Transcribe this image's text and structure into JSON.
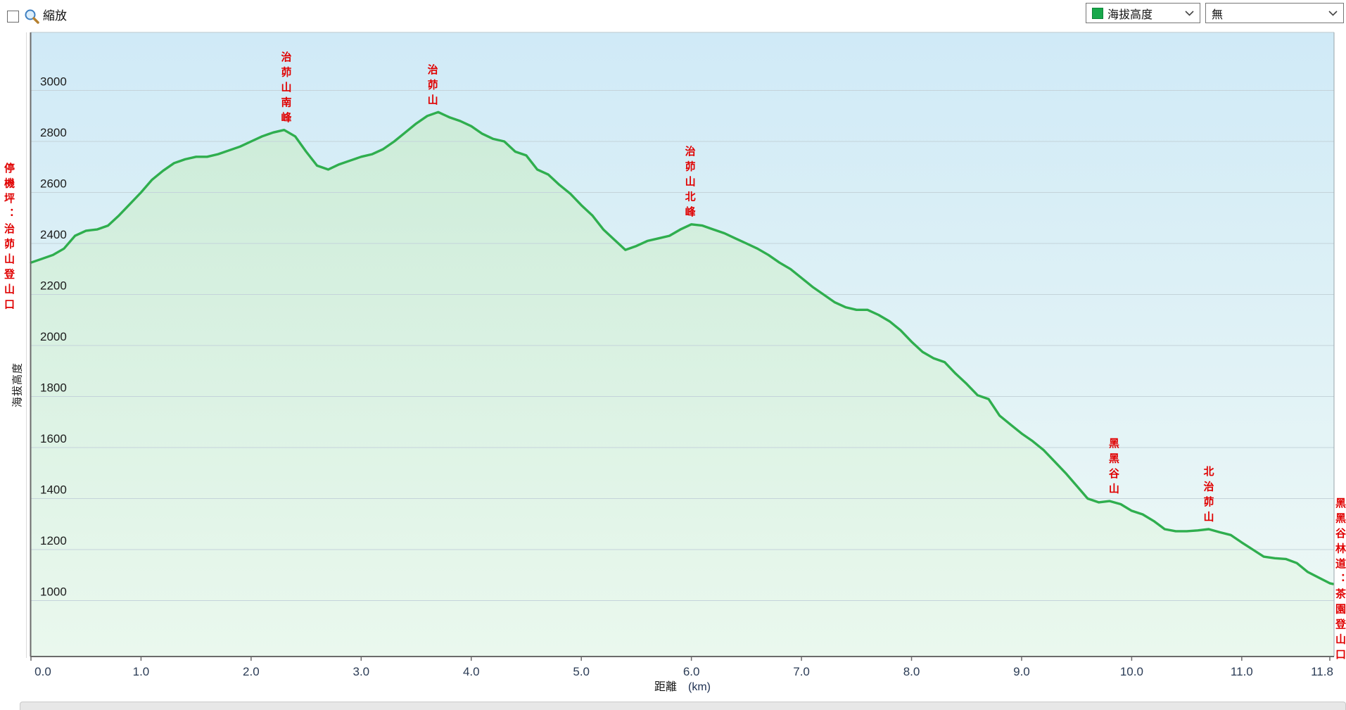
{
  "toolbar": {
    "zoom_label": "縮放",
    "series_select": {
      "value": "海拔高度",
      "swatch_color": "#17a84b"
    },
    "overlay_select": {
      "value": "無"
    }
  },
  "chart_data": {
    "type": "area",
    "title": "",
    "xlabel": "距離",
    "xlabel_unit": "(km)",
    "ylabel": "海拔高度",
    "grid": "horizontal",
    "legend_position": "top-right-dropdown",
    "x_axis": {
      "min": 0,
      "max": 11.83,
      "tick_km": [
        0,
        1,
        2,
        3,
        4,
        5,
        6,
        7,
        8,
        9,
        10,
        11,
        11.8
      ],
      "tick_labels": [
        "0.0",
        "1.0",
        "2.0",
        "3.0",
        "4.0",
        "5.0",
        "6.0",
        "7.0",
        "8.0",
        "9.0",
        "10.0",
        "11.0",
        "11.8"
      ]
    },
    "y_axis": {
      "min": 780,
      "max": 3230,
      "tick_m": [
        1000,
        1200,
        1400,
        1600,
        1800,
        2000,
        2200,
        2400,
        2600,
        2800,
        3000
      ],
      "tick_labels": [
        "1000",
        "1200",
        "1400",
        "1600",
        "1800",
        "2000",
        "2200",
        "2400",
        "2600",
        "2800",
        "3000"
      ]
    },
    "line_color": "#2fae4e",
    "area_top_color": "#cdecd9",
    "area_bottom_color": "#eaf8ee",
    "bg_top_color": "#d0eaf7",
    "bg_bottom_color": "#eff9f5",
    "points_km_m": [
      [
        0,
        2325
      ],
      [
        0.1,
        2340
      ],
      [
        0.2,
        2355
      ],
      [
        0.3,
        2380
      ],
      [
        0.4,
        2430
      ],
      [
        0.5,
        2450
      ],
      [
        0.6,
        2455
      ],
      [
        0.7,
        2470
      ],
      [
        0.8,
        2510
      ],
      [
        0.9,
        2555
      ],
      [
        1,
        2600
      ],
      [
        1.1,
        2650
      ],
      [
        1.2,
        2685
      ],
      [
        1.3,
        2715
      ],
      [
        1.4,
        2730
      ],
      [
        1.5,
        2740
      ],
      [
        1.6,
        2740
      ],
      [
        1.7,
        2750
      ],
      [
        1.8,
        2765
      ],
      [
        1.9,
        2780
      ],
      [
        2,
        2800
      ],
      [
        2.1,
        2820
      ],
      [
        2.2,
        2835
      ],
      [
        2.3,
        2845
      ],
      [
        2.4,
        2820
      ],
      [
        2.5,
        2760
      ],
      [
        2.6,
        2705
      ],
      [
        2.7,
        2690
      ],
      [
        2.8,
        2710
      ],
      [
        2.9,
        2725
      ],
      [
        3,
        2740
      ],
      [
        3.1,
        2750
      ],
      [
        3.2,
        2770
      ],
      [
        3.3,
        2800
      ],
      [
        3.4,
        2835
      ],
      [
        3.5,
        2870
      ],
      [
        3.6,
        2900
      ],
      [
        3.7,
        2915
      ],
      [
        3.8,
        2895
      ],
      [
        3.9,
        2880
      ],
      [
        4,
        2860
      ],
      [
        4.1,
        2830
      ],
      [
        4.2,
        2810
      ],
      [
        4.3,
        2800
      ],
      [
        4.4,
        2760
      ],
      [
        4.5,
        2745
      ],
      [
        4.6,
        2690
      ],
      [
        4.7,
        2670
      ],
      [
        4.8,
        2630
      ],
      [
        4.9,
        2595
      ],
      [
        5,
        2550
      ],
      [
        5.1,
        2510
      ],
      [
        5.2,
        2455
      ],
      [
        5.3,
        2415
      ],
      [
        5.4,
        2375
      ],
      [
        5.5,
        2390
      ],
      [
        5.6,
        2410
      ],
      [
        5.7,
        2420
      ],
      [
        5.8,
        2430
      ],
      [
        5.9,
        2455
      ],
      [
        6,
        2475
      ],
      [
        6.1,
        2470
      ],
      [
        6.2,
        2455
      ],
      [
        6.3,
        2440
      ],
      [
        6.4,
        2420
      ],
      [
        6.5,
        2400
      ],
      [
        6.6,
        2380
      ],
      [
        6.7,
        2355
      ],
      [
        6.8,
        2325
      ],
      [
        6.9,
        2300
      ],
      [
        7,
        2265
      ],
      [
        7.1,
        2230
      ],
      [
        7.2,
        2200
      ],
      [
        7.3,
        2170
      ],
      [
        7.4,
        2150
      ],
      [
        7.5,
        2140
      ],
      [
        7.6,
        2140
      ],
      [
        7.7,
        2120
      ],
      [
        7.8,
        2095
      ],
      [
        7.9,
        2060
      ],
      [
        8,
        2015
      ],
      [
        8.1,
        1975
      ],
      [
        8.2,
        1950
      ],
      [
        8.3,
        1935
      ],
      [
        8.4,
        1890
      ],
      [
        8.5,
        1850
      ],
      [
        8.6,
        1805
      ],
      [
        8.7,
        1790
      ],
      [
        8.8,
        1725
      ],
      [
        8.9,
        1690
      ],
      [
        9,
        1655
      ],
      [
        9.1,
        1625
      ],
      [
        9.2,
        1590
      ],
      [
        9.3,
        1545
      ],
      [
        9.4,
        1500
      ],
      [
        9.5,
        1450
      ],
      [
        9.6,
        1400
      ],
      [
        9.7,
        1385
      ],
      [
        9.8,
        1390
      ],
      [
        9.9,
        1378
      ],
      [
        10,
        1352
      ],
      [
        10.1,
        1338
      ],
      [
        10.2,
        1312
      ],
      [
        10.3,
        1280
      ],
      [
        10.4,
        1272
      ],
      [
        10.5,
        1272
      ],
      [
        10.6,
        1275
      ],
      [
        10.7,
        1280
      ],
      [
        10.8,
        1268
      ],
      [
        10.9,
        1257
      ],
      [
        11,
        1228
      ],
      [
        11.1,
        1200
      ],
      [
        11.2,
        1172
      ],
      [
        11.3,
        1166
      ],
      [
        11.4,
        1163
      ],
      [
        11.5,
        1147
      ],
      [
        11.6,
        1112
      ],
      [
        11.7,
        1090
      ],
      [
        11.8,
        1068
      ],
      [
        11.83,
        1065
      ]
    ]
  },
  "waypoints": [
    {
      "label": "停機坪：治茆山登山口",
      "km": 0,
      "side": "left"
    },
    {
      "label": "治茆山南峰",
      "km": 2.33,
      "side": "above"
    },
    {
      "label": "治茆山",
      "km": 3.66,
      "side": "above"
    },
    {
      "label": "治茆山北峰",
      "km": 6.0,
      "side": "above"
    },
    {
      "label": "黑黑谷山",
      "km": 9.85,
      "side": "above"
    },
    {
      "label": "北治茆山",
      "km": 10.71,
      "side": "above"
    },
    {
      "label": "黑黑谷林道：茶園登山口",
      "km": 11.83,
      "side": "right"
    }
  ],
  "colors": {
    "waypoint_label": "#e00000",
    "x_tick_label": "#2a3b55",
    "y_tick_label": "#1c1c1c",
    "grid_line": "#c4d3da",
    "axis_line": "#6b6b6b"
  }
}
